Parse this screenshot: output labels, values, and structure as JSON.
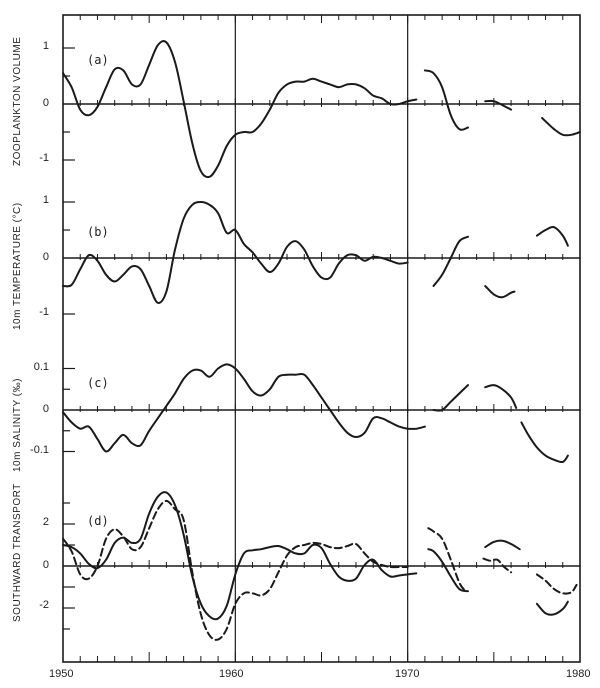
{
  "figure": {
    "x_axis": {
      "tick_labels": [
        "1950",
        "1960",
        "1970",
        "1980"
      ],
      "range": [
        1950,
        1980
      ]
    },
    "panels": [
      {
        "id": "a",
        "label": "(a)",
        "ylabel": "ZOOPLANKTON VOLUME",
        "tick_labels": [
          "1",
          "0",
          "-1"
        ]
      },
      {
        "id": "b",
        "label": "(b)",
        "ylabel": "10m TEMPERATURE (°C)",
        "tick_labels": [
          "1",
          "0",
          "-1"
        ]
      },
      {
        "id": "c",
        "label": "(c)",
        "ylabel": "10m SALINITY (‰)",
        "tick_labels": [
          "0.1",
          "0",
          "-0.1"
        ]
      },
      {
        "id": "d",
        "label": "(d)",
        "ylabel": "SOUTHWARD TRANSPORT",
        "tick_labels": [
          "2",
          "0",
          "-2"
        ]
      }
    ]
  },
  "chart_data": [
    {
      "type": "line",
      "title": "(a)",
      "xlabel": "",
      "ylabel": "ZOOPLANKTON VOLUME",
      "xlim": [
        1950,
        1980
      ],
      "ylim": [
        -1.5,
        1.6
      ],
      "grid": false,
      "reference_lines_x": [
        1960,
        1970
      ],
      "series": [
        {
          "name": "zooplankton volume",
          "style": "solid",
          "segments": [
            {
              "x": [
                1950.0,
                1950.5,
                1951.0,
                1951.5,
                1952.0,
                1952.5,
                1953.0,
                1953.5,
                1954.0,
                1954.5,
                1955.0,
                1955.5,
                1956.0,
                1956.5,
                1957.0,
                1957.5,
                1958.0,
                1958.5,
                1959.0,
                1959.5,
                1960.0,
                1960.5,
                1961.0,
                1961.5,
                1962.0,
                1962.5,
                1963.0,
                1963.5,
                1964.0,
                1964.5,
                1965.0,
                1965.5,
                1966.0,
                1966.5,
                1967.0,
                1967.5,
                1968.0,
                1968.5,
                1969.0,
                1969.5,
                1970.0,
                1970.5
              ],
              "y": [
                0.55,
                0.3,
                -0.1,
                -0.2,
                -0.05,
                0.3,
                0.62,
                0.6,
                0.35,
                0.35,
                0.7,
                1.05,
                1.1,
                0.75,
                0.05,
                -0.7,
                -1.2,
                -1.3,
                -1.1,
                -0.75,
                -0.55,
                -0.5,
                -0.5,
                -0.35,
                -0.1,
                0.2,
                0.35,
                0.4,
                0.4,
                0.45,
                0.4,
                0.35,
                0.3,
                0.35,
                0.35,
                0.28,
                0.15,
                0.1,
                0.0,
                0.0,
                0.05,
                0.08
              ]
            },
            {
              "x": [
                1971.0,
                1971.5,
                1972.0,
                1972.5,
                1973.0,
                1973.5
              ],
              "y": [
                0.6,
                0.55,
                0.3,
                -0.2,
                -0.45,
                -0.42
              ]
            },
            {
              "x": [
                1974.5,
                1975.0,
                1975.5,
                1976.0
              ],
              "y": [
                0.05,
                0.05,
                -0.02,
                -0.1
              ]
            },
            {
              "x": [
                1977.8,
                1978.5,
                1979.0,
                1979.5,
                1980.0
              ],
              "y": [
                -0.25,
                -0.45,
                -0.55,
                -0.55,
                -0.5
              ]
            }
          ]
        }
      ]
    },
    {
      "type": "line",
      "title": "(b)",
      "xlabel": "",
      "ylabel": "10m TEMPERATURE (°C)",
      "xlim": [
        1950,
        1980
      ],
      "ylim": [
        -1.5,
        1.5
      ],
      "grid": false,
      "reference_lines_x": [
        1960,
        1970
      ],
      "series": [
        {
          "name": "10m temperature",
          "style": "solid",
          "segments": [
            {
              "x": [
                1950.0,
                1950.5,
                1951.0,
                1951.5,
                1952.0,
                1952.5,
                1953.0,
                1953.5,
                1954.0,
                1954.5,
                1955.0,
                1955.5,
                1956.0,
                1956.5,
                1957.0,
                1957.5,
                1958.0,
                1958.5,
                1959.0,
                1959.5,
                1960.0,
                1960.5,
                1961.0,
                1961.5,
                1962.0,
                1962.5,
                1963.0,
                1963.5,
                1964.0,
                1964.5,
                1965.0,
                1965.5,
                1966.0,
                1966.5,
                1967.0,
                1967.5,
                1968.0,
                1968.5,
                1969.0,
                1969.5,
                1970.0
              ],
              "y": [
                -0.5,
                -0.48,
                -0.2,
                0.05,
                -0.05,
                -0.3,
                -0.42,
                -0.3,
                -0.15,
                -0.2,
                -0.5,
                -0.8,
                -0.6,
                0.15,
                0.7,
                0.95,
                1.0,
                0.95,
                0.8,
                0.45,
                0.5,
                0.25,
                0.1,
                -0.1,
                -0.25,
                -0.1,
                0.2,
                0.3,
                0.15,
                -0.15,
                -0.35,
                -0.35,
                -0.1,
                0.05,
                0.05,
                -0.05,
                0.02,
                0.0,
                -0.05,
                -0.1,
                -0.08
              ]
            },
            {
              "x": [
                1971.5,
                1972.0,
                1972.5,
                1973.0,
                1973.5
              ],
              "y": [
                -0.5,
                -0.3,
                0.0,
                0.3,
                0.38
              ]
            },
            {
              "x": [
                1974.5,
                1975.0,
                1975.5,
                1976.0,
                1976.2
              ],
              "y": [
                -0.5,
                -0.65,
                -0.7,
                -0.62,
                -0.6
              ]
            },
            {
              "x": [
                1977.5,
                1978.0,
                1978.5,
                1979.0,
                1979.3
              ],
              "y": [
                0.4,
                0.5,
                0.55,
                0.4,
                0.22
              ]
            }
          ]
        }
      ]
    },
    {
      "type": "line",
      "title": "(c)",
      "xlabel": "",
      "ylabel": "10m SALINITY (‰)",
      "xlim": [
        1950,
        1980
      ],
      "ylim": [
        -0.16,
        0.16
      ],
      "grid": false,
      "reference_lines_x": [
        1960,
        1970
      ],
      "series": [
        {
          "name": "10m salinity",
          "style": "solid",
          "segments": [
            {
              "x": [
                1950.0,
                1950.5,
                1951.0,
                1951.5,
                1952.0,
                1952.5,
                1953.0,
                1953.5,
                1954.0,
                1954.5,
                1955.0,
                1955.5,
                1956.0,
                1956.5,
                1957.0,
                1957.5,
                1958.0,
                1958.5,
                1959.0,
                1959.5,
                1960.0,
                1960.5,
                1961.0,
                1961.5,
                1962.0,
                1962.5,
                1963.0,
                1963.5,
                1964.0,
                1964.5,
                1965.0,
                1965.5,
                1966.0,
                1966.5,
                1967.0,
                1967.5,
                1968.0,
                1968.5,
                1969.0,
                1969.5,
                1970.0,
                1970.5,
                1971.0
              ],
              "y": [
                -0.005,
                -0.03,
                -0.045,
                -0.04,
                -0.07,
                -0.1,
                -0.08,
                -0.06,
                -0.08,
                -0.085,
                -0.05,
                -0.02,
                0.01,
                0.04,
                0.075,
                0.095,
                0.095,
                0.08,
                0.1,
                0.11,
                0.1,
                0.075,
                0.045,
                0.035,
                0.05,
                0.08,
                0.085,
                0.085,
                0.085,
                0.06,
                0.03,
                0.0,
                -0.03,
                -0.055,
                -0.065,
                -0.055,
                -0.02,
                -0.02,
                -0.03,
                -0.04,
                -0.045,
                -0.045,
                -0.04
              ]
            },
            {
              "x": [
                1971.5,
                1972.0,
                1972.5,
                1973.0,
                1973.5
              ],
              "y": [
                0.0,
                0.0,
                0.02,
                0.04,
                0.06
              ]
            },
            {
              "x": [
                1974.5,
                1975.0,
                1975.5,
                1976.0,
                1976.3
              ],
              "y": [
                0.055,
                0.06,
                0.05,
                0.03,
                0.005
              ]
            },
            {
              "x": [
                1976.6,
                1977.0,
                1977.5,
                1978.0,
                1978.5,
                1979.0,
                1979.3
              ],
              "y": [
                -0.03,
                -0.06,
                -0.09,
                -0.11,
                -0.12,
                -0.125,
                -0.11
              ]
            }
          ]
        }
      ]
    },
    {
      "type": "line",
      "title": "(d)",
      "xlabel": "",
      "ylabel": "SOUTHWARD TRANSPORT",
      "xlim": [
        1950,
        1980
      ],
      "ylim": [
        -4.5,
        3.9
      ],
      "grid": false,
      "reference_lines_x": [
        1960,
        1970
      ],
      "series": [
        {
          "name": "southward transport (solid)",
          "style": "solid",
          "segments": [
            {
              "x": [
                1950.0,
                1950.5,
                1951.0,
                1951.5,
                1952.0,
                1952.5,
                1953.0,
                1953.5,
                1954.0,
                1954.5,
                1955.0,
                1955.5,
                1956.0,
                1956.5,
                1957.0,
                1957.5,
                1958.0,
                1958.5,
                1959.0,
                1959.5,
                1960.0,
                1960.5,
                1961.0,
                1961.5,
                1962.0,
                1962.5,
                1963.0,
                1963.5,
                1964.0,
                1964.5,
                1965.0,
                1965.5,
                1966.0,
                1966.5,
                1967.0,
                1967.5,
                1968.0,
                1968.5,
                1969.0,
                1969.5,
                1970.0,
                1970.5
              ],
              "y": [
                1.0,
                0.9,
                0.6,
                0.1,
                -0.1,
                0.3,
                1.1,
                1.35,
                1.1,
                1.3,
                2.5,
                3.3,
                3.5,
                2.9,
                1.5,
                -0.5,
                -1.8,
                -2.4,
                -2.5,
                -1.9,
                -0.4,
                0.6,
                0.75,
                0.8,
                0.9,
                0.95,
                0.8,
                0.6,
                0.6,
                1.0,
                0.85,
                0.1,
                -0.5,
                -0.7,
                -0.6,
                0.05,
                0.3,
                -0.2,
                -0.5,
                -0.45,
                -0.4,
                -0.35
              ]
            },
            {
              "x": [
                1971.2,
                1971.5,
                1972.0,
                1972.5,
                1973.0,
                1973.5
              ],
              "y": [
                0.8,
                0.7,
                0.2,
                -0.5,
                -1.1,
                -1.2
              ]
            },
            {
              "x": [
                1974.5,
                1975.0,
                1975.5,
                1976.0,
                1976.5
              ],
              "y": [
                0.9,
                1.15,
                1.2,
                1.05,
                0.8
              ]
            },
            {
              "x": [
                1977.5,
                1978.0,
                1978.5,
                1979.0,
                1979.3
              ],
              "y": [
                -1.8,
                -2.25,
                -2.3,
                -2.05,
                -1.7
              ]
            }
          ]
        },
        {
          "name": "southward transport (dashed)",
          "style": "dashed",
          "segments": [
            {
              "x": [
                1950.0,
                1950.5,
                1951.0,
                1951.5,
                1952.0,
                1952.5,
                1953.0,
                1953.5,
                1954.0,
                1954.5,
                1955.0,
                1955.5,
                1956.0,
                1956.5,
                1957.0,
                1957.5,
                1958.0,
                1958.5,
                1959.0,
                1959.5,
                1960.0,
                1960.5,
                1961.0,
                1961.5,
                1962.0,
                1962.5,
                1963.0,
                1963.5,
                1964.0,
                1964.5,
                1965.0,
                1965.5,
                1966.0,
                1966.5,
                1967.0,
                1967.5,
                1968.0,
                1968.5,
                1969.0,
                1969.5,
                1970.0
              ],
              "y": [
                1.3,
                0.7,
                -0.4,
                -0.6,
                0.0,
                1.3,
                1.75,
                1.4,
                0.8,
                0.9,
                1.8,
                2.7,
                3.1,
                2.7,
                2.2,
                -0.3,
                -2.3,
                -3.3,
                -3.5,
                -3.0,
                -1.8,
                -1.3,
                -1.3,
                -1.4,
                -1.1,
                -0.3,
                0.5,
                0.9,
                1.0,
                1.1,
                1.05,
                0.9,
                0.85,
                0.95,
                1.05,
                0.6,
                0.2,
                0.05,
                -0.05,
                -0.05,
                -0.05
              ]
            },
            {
              "x": [
                1971.2,
                1971.5,
                1972.0,
                1972.5,
                1973.0,
                1973.3
              ],
              "y": [
                1.8,
                1.65,
                1.3,
                0.3,
                -0.8,
                -1.15
              ]
            },
            {
              "x": [
                1974.4,
                1974.8,
                1975.2,
                1975.6,
                1976.0
              ],
              "y": [
                0.35,
                0.25,
                0.3,
                -0.05,
                -0.3
              ]
            },
            {
              "x": [
                1977.5,
                1978.0,
                1978.5,
                1979.0,
                1979.5,
                1979.8
              ],
              "y": [
                -0.4,
                -0.7,
                -1.1,
                -1.3,
                -1.25,
                -0.9
              ]
            }
          ]
        }
      ]
    }
  ]
}
